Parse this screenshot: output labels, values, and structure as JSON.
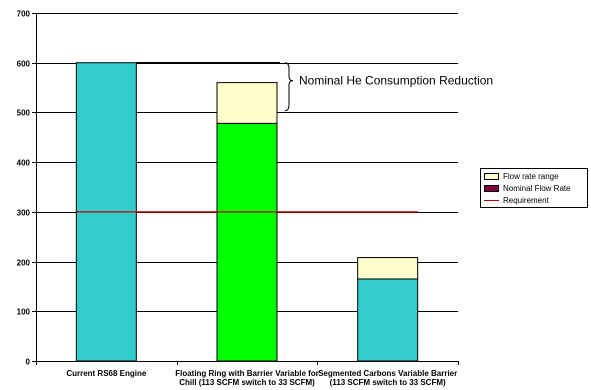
{
  "chart_data": {
    "type": "bar",
    "stacked": true,
    "title": "",
    "xlabel": "",
    "ylabel": "",
    "ylim": [
      0,
      700
    ],
    "yticks": [
      0,
      100,
      200,
      300,
      400,
      500,
      600,
      700
    ],
    "grid": true,
    "legend_position": "right",
    "categories": [
      [
        "Current RS68 Engine"
      ],
      [
        "Floating Ring with Barrier Variable for",
        "Chill (113 SCFM switch to 33 SCFM)"
      ],
      [
        "Segmented Carbons Variable Barrier",
        "(113 SCFM switch to 33 SCFM)"
      ]
    ],
    "series": [
      {
        "name": "Nominal Flow Rate",
        "values": [
          600,
          478,
          165
        ],
        "colors": [
          "#33cccc",
          "#00ff00",
          "#33cccc"
        ]
      },
      {
        "name": "Flow rate range",
        "values": [
          0,
          82,
          43
        ],
        "color": "#ffffcc"
      }
    ],
    "reference_line": {
      "name": "Requirement",
      "value": 300,
      "color": "#c00000"
    },
    "annotation": {
      "text": "Nominal He Consumption Reduction",
      "from_value": 600,
      "to_value": 560
    },
    "legend": [
      {
        "label": "Flow rate range",
        "kind": "box",
        "color": "#ffffcc"
      },
      {
        "label": "Nominal Flow Rate",
        "kind": "box",
        "color": "#800040"
      },
      {
        "label": "Requirement",
        "kind": "line",
        "color": "#c00000"
      }
    ]
  }
}
